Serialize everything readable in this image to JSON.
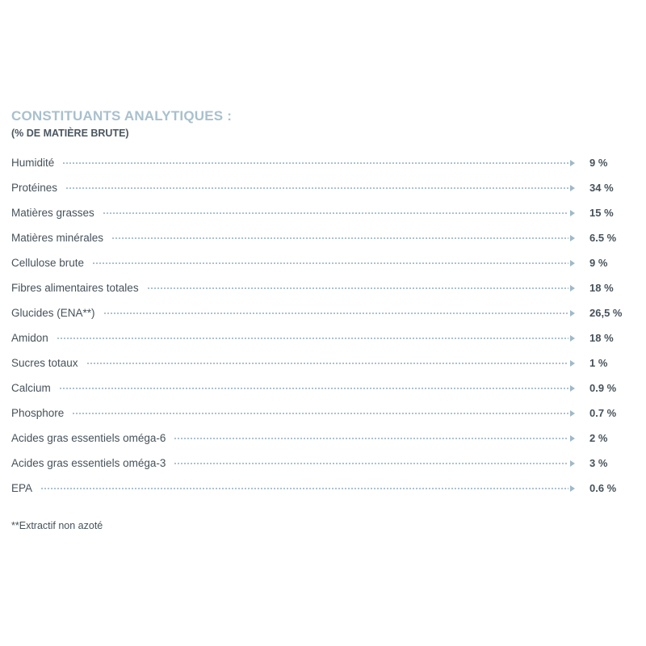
{
  "header": {
    "title": "CONSTITUANTS ANALYTIQUES :",
    "subtitle": "(% DE MATIÈRE BRUTE)"
  },
  "rows": [
    {
      "label": "Humidité",
      "value": "9 %"
    },
    {
      "label": "Protéines",
      "value": "34 %"
    },
    {
      "label": "Matières grasses",
      "value": "15 %"
    },
    {
      "label": "Matières minérales",
      "value": "6.5 %"
    },
    {
      "label": "Cellulose brute",
      "value": "9 %"
    },
    {
      "label": "Fibres alimentaires totales",
      "value": "18 %"
    },
    {
      "label": "Glucides (ENA**)",
      "value": "26,5 %"
    },
    {
      "label": "Amidon",
      "value": "18 %"
    },
    {
      "label": "Sucres totaux",
      "value": "1 %"
    },
    {
      "label": "Calcium",
      "value": "0.9 %"
    },
    {
      "label": "Phosphore",
      "value": "0.7 %"
    },
    {
      "label": "Acides gras essentiels oméga-6",
      "value": "2 %"
    },
    {
      "label": "Acides gras essentiels oméga-3",
      "value": "3 %"
    },
    {
      "label": "EPA",
      "value": "0.6 %"
    }
  ],
  "footnote": "**Extractif non azoté",
  "colors": {
    "title": "#a9c0cd",
    "text": "#46525b",
    "leader": "#9fb9c8"
  }
}
